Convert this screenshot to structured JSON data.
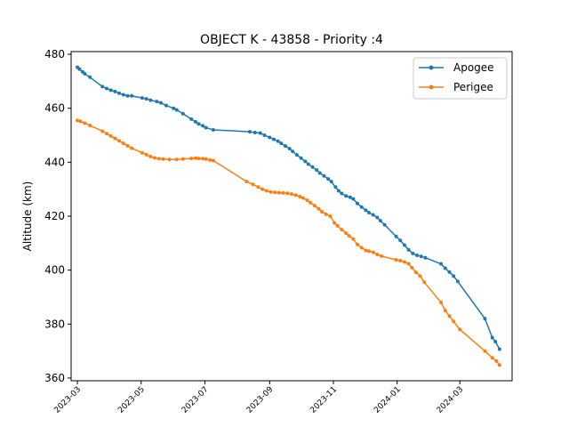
{
  "chart_data": {
    "type": "line",
    "title": "OBJECT K - 43858 - Priority :4",
    "xlabel": "",
    "ylabel": "Altitude (km)",
    "xlim": [
      "2023-02-23",
      "2024-04-20"
    ],
    "ylim": [
      359,
      481
    ],
    "yticks": [
      360,
      380,
      400,
      420,
      440,
      460,
      480
    ],
    "xticks": [
      "2023-03",
      "2023-05",
      "2023-07",
      "2023-09",
      "2023-11",
      "2024-01",
      "2024-03"
    ],
    "grid": false,
    "legend": "top-right",
    "series": [
      {
        "name": "Apogee",
        "color": "#1f77b4",
        "points": [
          [
            "2023-03-01",
            475.2
          ],
          [
            "2023-03-03",
            474.5
          ],
          [
            "2023-03-06",
            473.5
          ],
          [
            "2023-03-08",
            472.8
          ],
          [
            "2023-03-13",
            471.5
          ],
          [
            "2023-03-25",
            468.0
          ],
          [
            "2023-03-29",
            467.3
          ],
          [
            "2023-04-02",
            466.7
          ],
          [
            "2023-04-06",
            466.2
          ],
          [
            "2023-04-10",
            465.6
          ],
          [
            "2023-04-14",
            465.0
          ],
          [
            "2023-04-18",
            464.6
          ],
          [
            "2023-04-22",
            464.6
          ],
          [
            "2023-05-02",
            463.8
          ],
          [
            "2023-05-06",
            463.5
          ],
          [
            "2023-05-10",
            463.0
          ],
          [
            "2023-05-16",
            462.5
          ],
          [
            "2023-05-20",
            462.0
          ],
          [
            "2023-05-25",
            461.0
          ],
          [
            "2023-06-01",
            460.0
          ],
          [
            "2023-06-04",
            459.4
          ],
          [
            "2023-06-10",
            458.0
          ],
          [
            "2023-06-18",
            456.0
          ],
          [
            "2023-06-22",
            455.0
          ],
          [
            "2023-06-25",
            454.2
          ],
          [
            "2023-06-29",
            453.5
          ],
          [
            "2023-07-02",
            452.8
          ],
          [
            "2023-07-09",
            452.0
          ],
          [
            "2023-08-13",
            451.3
          ],
          [
            "2023-08-18",
            451.0
          ],
          [
            "2023-08-23",
            450.8
          ],
          [
            "2023-08-27",
            450.0
          ],
          [
            "2023-09-01",
            449.2
          ],
          [
            "2023-09-05",
            448.5
          ],
          [
            "2023-09-09",
            447.8
          ],
          [
            "2023-09-12",
            447.0
          ],
          [
            "2023-09-16",
            446.0
          ],
          [
            "2023-09-20",
            445.0
          ],
          [
            "2023-09-23",
            444.0
          ],
          [
            "2023-09-27",
            442.7
          ],
          [
            "2023-10-01",
            441.5
          ],
          [
            "2023-10-05",
            440.3
          ],
          [
            "2023-10-08",
            439.3
          ],
          [
            "2023-10-12",
            438.2
          ],
          [
            "2023-10-16",
            437.1
          ],
          [
            "2023-10-19",
            436.0
          ],
          [
            "2023-10-23",
            434.9
          ],
          [
            "2023-10-27",
            433.8
          ],
          [
            "2023-10-30",
            432.8
          ],
          [
            "2023-11-03",
            430.8
          ],
          [
            "2023-11-06",
            429.4
          ],
          [
            "2023-11-09",
            428.4
          ],
          [
            "2023-11-13",
            427.5
          ],
          [
            "2023-11-17",
            427.0
          ],
          [
            "2023-11-20",
            426.4
          ],
          [
            "2023-11-24",
            424.7
          ],
          [
            "2023-11-28",
            423.4
          ],
          [
            "2023-12-02",
            422.2
          ],
          [
            "2023-12-05",
            421.3
          ],
          [
            "2023-12-09",
            420.5
          ],
          [
            "2023-12-13",
            419.5
          ],
          [
            "2023-12-16",
            418.3
          ],
          [
            "2023-12-20",
            416.8
          ],
          [
            "2023-12-31",
            412.5
          ],
          [
            "2024-01-04",
            411.0
          ],
          [
            "2024-01-08",
            409.3
          ],
          [
            "2024-01-12",
            407.5
          ],
          [
            "2024-01-16",
            406.2
          ],
          [
            "2024-01-20",
            405.5
          ],
          [
            "2024-01-24",
            405.1
          ],
          [
            "2024-01-28",
            404.6
          ],
          [
            "2024-02-12",
            402.3
          ],
          [
            "2024-02-16",
            400.7
          ],
          [
            "2024-02-20",
            399.3
          ],
          [
            "2024-02-24",
            397.8
          ],
          [
            "2024-02-28",
            395.8
          ],
          [
            "2024-03-25",
            382.0
          ],
          [
            "2024-04-01",
            375.0
          ],
          [
            "2024-04-04",
            373.5
          ],
          [
            "2024-04-08",
            370.7
          ]
        ]
      },
      {
        "name": "Perigee",
        "color": "#ff7f0e",
        "points": [
          [
            "2023-03-01",
            455.5
          ],
          [
            "2023-03-04",
            455.1
          ],
          [
            "2023-03-08",
            454.5
          ],
          [
            "2023-03-13",
            453.6
          ],
          [
            "2023-03-25",
            451.5
          ],
          [
            "2023-03-29",
            450.6
          ],
          [
            "2023-04-02",
            449.7
          ],
          [
            "2023-04-06",
            448.8
          ],
          [
            "2023-04-10",
            447.9
          ],
          [
            "2023-04-14",
            447.0
          ],
          [
            "2023-04-18",
            446.1
          ],
          [
            "2023-04-22",
            445.2
          ],
          [
            "2023-05-02",
            443.5
          ],
          [
            "2023-05-06",
            442.8
          ],
          [
            "2023-05-10",
            442.1
          ],
          [
            "2023-05-14",
            441.6
          ],
          [
            "2023-05-18",
            441.3
          ],
          [
            "2023-05-22",
            441.2
          ],
          [
            "2023-05-28",
            441.0
          ],
          [
            "2023-06-04",
            441.0
          ],
          [
            "2023-06-10",
            441.2
          ],
          [
            "2023-06-18",
            441.4
          ],
          [
            "2023-06-22",
            441.5
          ],
          [
            "2023-06-25",
            441.4
          ],
          [
            "2023-06-29",
            441.3
          ],
          [
            "2023-07-02",
            441.2
          ],
          [
            "2023-07-06",
            440.8
          ],
          [
            "2023-07-09",
            440.6
          ],
          [
            "2023-08-10",
            432.8
          ],
          [
            "2023-08-16",
            431.8
          ],
          [
            "2023-08-21",
            430.8
          ],
          [
            "2023-08-25",
            430.0
          ],
          [
            "2023-08-29",
            429.4
          ],
          [
            "2023-09-02",
            429.0
          ],
          [
            "2023-09-06",
            428.8
          ],
          [
            "2023-09-10",
            428.7
          ],
          [
            "2023-09-14",
            428.6
          ],
          [
            "2023-09-18",
            428.5
          ],
          [
            "2023-09-22",
            428.2
          ],
          [
            "2023-09-26",
            427.8
          ],
          [
            "2023-09-30",
            427.2
          ],
          [
            "2023-10-03",
            426.7
          ],
          [
            "2023-10-07",
            425.9
          ],
          [
            "2023-10-10",
            425.0
          ],
          [
            "2023-10-14",
            423.9
          ],
          [
            "2023-10-18",
            422.7
          ],
          [
            "2023-10-21",
            421.6
          ],
          [
            "2023-10-25",
            420.7
          ],
          [
            "2023-10-29",
            420.0
          ],
          [
            "2023-11-02",
            417.5
          ],
          [
            "2023-11-05",
            416.4
          ],
          [
            "2023-11-09",
            415.0
          ],
          [
            "2023-11-13",
            413.7
          ],
          [
            "2023-11-16",
            412.7
          ],
          [
            "2023-11-20",
            411.5
          ],
          [
            "2023-11-24",
            409.5
          ],
          [
            "2023-11-28",
            408.3
          ],
          [
            "2023-12-02",
            407.3
          ],
          [
            "2023-12-05",
            407.0
          ],
          [
            "2023-12-09",
            406.6
          ],
          [
            "2023-12-13",
            405.8
          ],
          [
            "2023-12-17",
            405.2
          ],
          [
            "2023-12-31",
            403.8
          ],
          [
            "2024-01-04",
            403.5
          ],
          [
            "2024-01-08",
            403.0
          ],
          [
            "2024-01-12",
            402.3
          ],
          [
            "2024-01-15",
            400.9
          ],
          [
            "2024-01-19",
            399.2
          ],
          [
            "2024-01-23",
            397.8
          ],
          [
            "2024-01-27",
            395.5
          ],
          [
            "2024-02-12",
            388.0
          ],
          [
            "2024-02-16",
            385.0
          ],
          [
            "2024-02-20",
            383.0
          ],
          [
            "2024-02-24",
            381.0
          ],
          [
            "2024-03-01",
            378.0
          ],
          [
            "2024-03-25",
            370.0
          ],
          [
            "2024-04-01",
            367.5
          ],
          [
            "2024-04-05",
            366.3
          ],
          [
            "2024-04-08",
            364.8
          ]
        ]
      }
    ]
  }
}
